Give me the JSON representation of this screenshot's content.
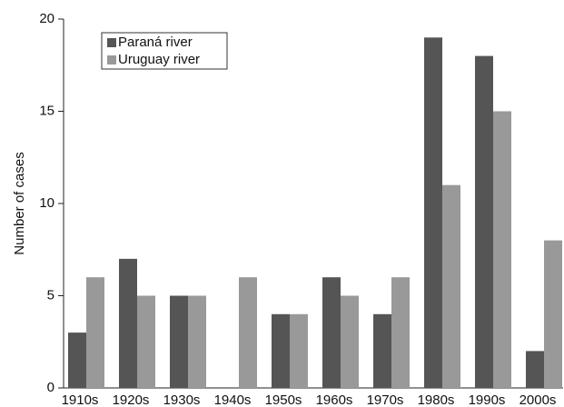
{
  "chart_data": {
    "type": "bar",
    "y_label": "Number of cases",
    "categories": [
      "1910s",
      "1920s",
      "1930s",
      "1940s",
      "1950s",
      "1960s",
      "1970s",
      "1980s",
      "1990s",
      "2000s"
    ],
    "series": [
      {
        "name": "Paraná river",
        "color": "#555555",
        "values": [
          3,
          7,
          5,
          0,
          4,
          6,
          4,
          19,
          18,
          2
        ]
      },
      {
        "name": "Uruguay river",
        "color": "#999999",
        "values": [
          6,
          5,
          5,
          6,
          4,
          5,
          6,
          11,
          15,
          8
        ]
      }
    ],
    "ylim": [
      0,
      20
    ],
    "yticks": [
      0,
      5,
      10,
      15,
      20
    ],
    "grid": false,
    "legend": "upper left"
  }
}
